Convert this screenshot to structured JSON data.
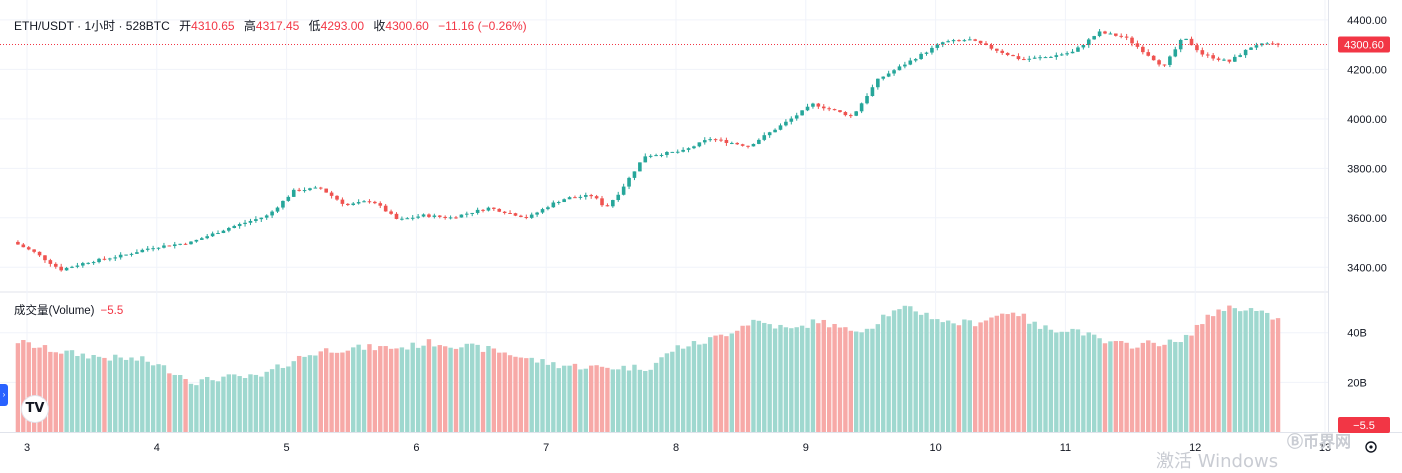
{
  "header": {
    "symbol": "ETH/USDT · 1小时 · 528BTC",
    "open_label": "开",
    "open": "4310.65",
    "high_label": "高",
    "high": "4317.45",
    "low_label": "低",
    "low": "4293.00",
    "close_label": "收",
    "close": "4300.60",
    "change": "−11.16 (−0.26%)"
  },
  "volume_header": {
    "label": "成交量(Volume)",
    "value": "−5.5"
  },
  "colors": {
    "up": "#26a69a",
    "down": "#ef5350",
    "vol_up": "#9fd8cf",
    "vol_down": "#f7a9a7",
    "price_tag": "#f23645",
    "grid": "#f0f3fa",
    "axis_text": "#131722"
  },
  "icons": {
    "tradingview": "tradingview-logo-icon",
    "settings": "gear-icon",
    "side_tab": "chevron-right-icon"
  },
  "watermark": "币界网",
  "windows_activation": "激活 Windows",
  "chart_data": {
    "type": "candlestick",
    "x_tick_labels": [
      "3",
      "4",
      "5",
      "6",
      "7",
      "8",
      "9",
      "10",
      "11",
      "12",
      "13"
    ],
    "price_axis": {
      "ticks": [
        3400,
        3600,
        3800,
        4000,
        4200,
        4400
      ],
      "tick_labels": [
        "3400.00",
        "3600.00",
        "3800.00",
        "4000.00",
        "4200.00",
        "4400.00"
      ],
      "ylim": [
        3300,
        4440
      ],
      "last_price": 4300.6,
      "last_price_label": "4300.60"
    },
    "volume_axis": {
      "tick_labels": [
        "40B",
        "20B"
      ],
      "ticks": [
        40,
        20
      ],
      "ylim": [
        0,
        56
      ],
      "last_value_label": "−5.5"
    },
    "price_path": {
      "x_days": [
        2.9,
        3.1,
        3.3,
        3.5,
        3.8,
        4.0,
        4.3,
        4.6,
        4.9,
        5.1,
        5.3,
        5.5,
        5.7,
        5.9,
        6.1,
        6.3,
        6.6,
        6.9,
        7.1,
        7.2,
        7.4,
        7.5,
        7.6,
        7.8,
        8.1,
        8.3,
        8.6,
        8.9,
        9.1,
        9.4,
        9.6,
        9.9,
        10.1,
        10.3,
        10.5,
        10.7,
        10.9,
        11.1,
        11.3,
        11.5,
        11.7,
        11.8,
        11.95,
        12.1,
        12.3,
        12.5,
        12.65
      ],
      "prices": [
        3510,
        3460,
        3390,
        3420,
        3450,
        3480,
        3500,
        3560,
        3610,
        3710,
        3720,
        3650,
        3670,
        3590,
        3610,
        3600,
        3640,
        3600,
        3660,
        3680,
        3690,
        3640,
        3700,
        3850,
        3870,
        3920,
        3890,
        3990,
        4060,
        4010,
        4160,
        4250,
        4310,
        4320,
        4280,
        4240,
        4250,
        4270,
        4350,
        4330,
        4250,
        4210,
        4330,
        4260,
        4230,
        4300,
        4300
      ]
    },
    "volume_path": {
      "x_days": [
        2.9,
        3.1,
        3.3,
        3.6,
        3.9,
        4.1,
        4.3,
        4.5,
        4.8,
        4.9,
        5.1,
        5.3,
        5.6,
        5.9,
        6.1,
        6.3,
        6.6,
        6.9,
        7.1,
        7.4,
        7.6,
        7.8,
        8.0,
        8.2,
        8.4,
        8.6,
        8.9,
        9.1,
        9.3,
        9.5,
        9.6,
        9.8,
        10.1,
        10.3,
        10.6,
        10.8,
        11.1,
        11.3,
        11.5,
        11.7,
        11.9,
        12.0,
        12.2,
        12.4,
        12.65
      ],
      "values": [
        37,
        34,
        32,
        30,
        29,
        25,
        20,
        22,
        22,
        25,
        30,
        33,
        34,
        34,
        36,
        35,
        33,
        29,
        27,
        26,
        26,
        26,
        34,
        36,
        40,
        45,
        41,
        45,
        41,
        42,
        47,
        50,
        44,
        44,
        49,
        42,
        41,
        36,
        35,
        36,
        36,
        42,
        50,
        50,
        45
      ]
    }
  }
}
